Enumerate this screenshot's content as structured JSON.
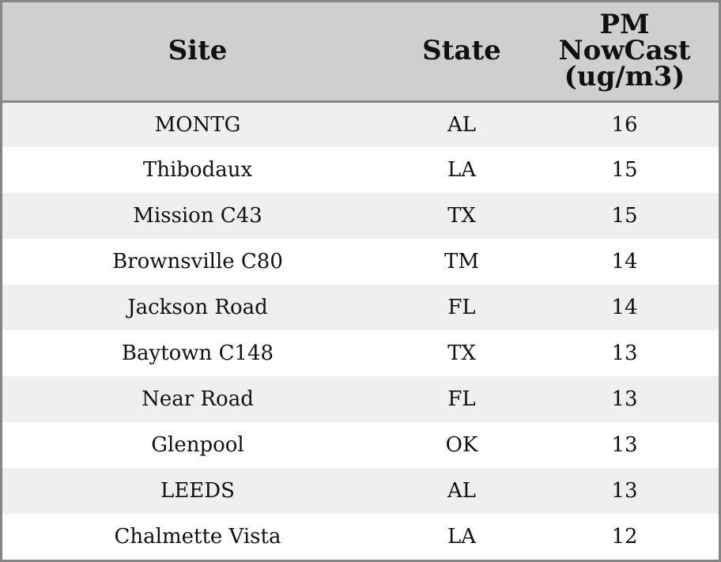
{
  "chart_data": {
    "type": "table",
    "columns": [
      "Site",
      "State",
      "PM NowCast (ug/m3)"
    ],
    "header_lines": {
      "site": "Site",
      "state": "State",
      "pm": [
        "PM",
        "NowCast",
        "(ug/m3)"
      ]
    },
    "rows": [
      {
        "site": "MONTG",
        "state": "AL",
        "value": "16"
      },
      {
        "site": "Thibodaux",
        "state": "LA",
        "value": "15"
      },
      {
        "site": "Mission C43",
        "state": "TX",
        "value": "15"
      },
      {
        "site": "Brownsville C80",
        "state": "TM",
        "value": "14"
      },
      {
        "site": "Jackson Road",
        "state": "FL",
        "value": "14"
      },
      {
        "site": "Baytown C148",
        "state": "TX",
        "value": "13"
      },
      {
        "site": "Near Road",
        "state": "FL",
        "value": "13"
      },
      {
        "site": "Glenpool",
        "state": "OK",
        "value": "13"
      },
      {
        "site": "LEEDS",
        "state": "AL",
        "value": "13"
      },
      {
        "site": "Chalmette Vista",
        "state": "LA",
        "value": "12"
      }
    ]
  },
  "colors": {
    "header_bg": "#cfcfcf",
    "row_alt_bg": "#efefef",
    "row_bg": "#ffffff",
    "border": "#858585",
    "text": "#111111"
  }
}
